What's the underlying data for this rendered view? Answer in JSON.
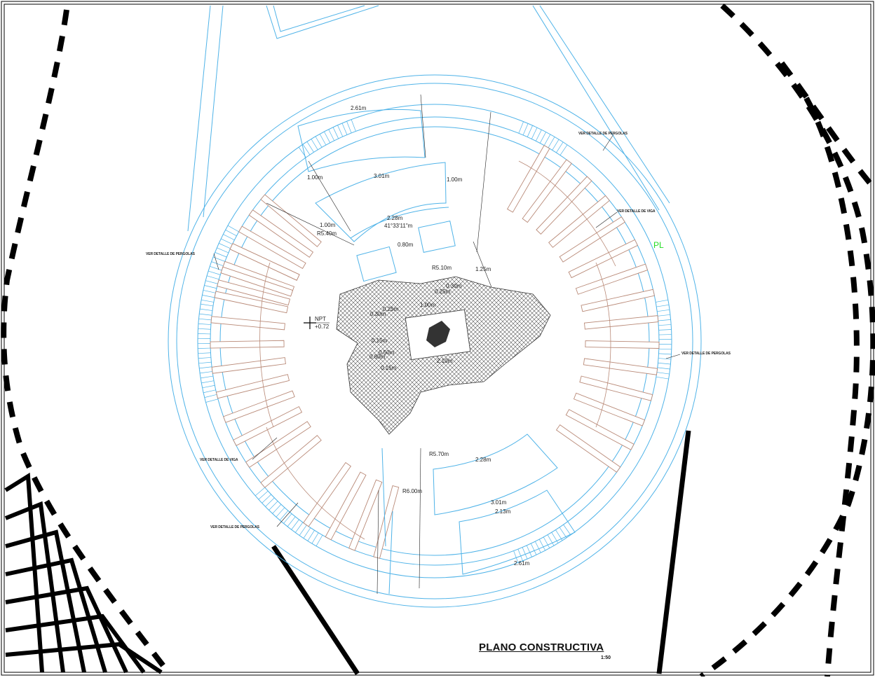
{
  "plan": {
    "title": "PLANO CONSTRUCTIVA",
    "scale": "1:50",
    "pl_marker": "PL",
    "level": {
      "label": "NPT",
      "value": "+0.72"
    },
    "dimensions": {
      "top_arc_outer": "2.61m",
      "top_arc_mid": "3.01m",
      "top_arc_inner": "2.28m",
      "top_angle": "41°33'11\"m",
      "top_left_v": "1.00m",
      "top_right_v": "1.00m",
      "top_left_low": "1.00m",
      "top_radius": "R5.40m",
      "bench_gap": "0.80m",
      "radius_510": "R5.10m",
      "offset_125": "1.25m",
      "c_030a": "0.30m",
      "c_025a": "0.25m",
      "c_025b": "0.25m",
      "c_100": "1.00m",
      "c_030b": "0.30m",
      "c_015a": "0.15m",
      "c_050": "0.50m",
      "c_080": "0.80m",
      "c_015b": "0.15m",
      "c_210": "2.10m",
      "bottom_radius_570": "R5.70m",
      "bottom_arc_inner": "2.28m",
      "bottom_radius_600": "R6.00m",
      "bottom_arc_mid": "3.01m",
      "bottom_arc_213": "2.13m",
      "bottom_arc_outer": "2.61m"
    },
    "notes": {
      "pergolas_top_right": "VER DETALLE DE PERGOLAS",
      "viga_right": "VER DETALLE DE VIGA",
      "pergolas_left": "VER DETALLE DE PERGOLAS",
      "pergolas_right": "VER DETALLE DE PERGOLAS",
      "viga_left": "VER DETALLE DE VIGA",
      "pergolas_bottom": "VER DETALLE DE PERGOLAS"
    },
    "colors": {
      "cad_blue": "#4fb3e8",
      "pergola_brown": "#b98a78",
      "pl_green": "#22dd22",
      "ink": "#000000"
    }
  }
}
